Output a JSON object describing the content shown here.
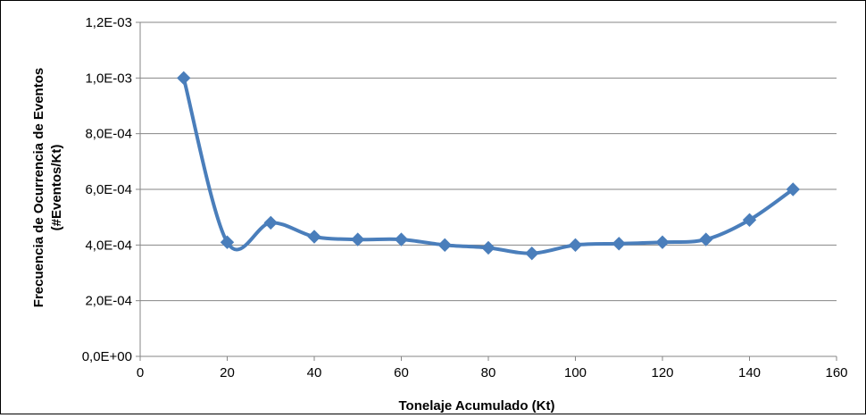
{
  "chart_data": {
    "type": "line",
    "title": "",
    "xlabel": "Tonelaje Acumulado (Kt)",
    "ylabel_line1": "Frecuencia de Ocurrencia de Eventos",
    "ylabel_line2": "(#Eventos/Kt)",
    "xlim": [
      0,
      160
    ],
    "ylim": [
      0,
      0.0012
    ],
    "x_ticks": [
      0,
      20,
      40,
      60,
      80,
      100,
      120,
      140,
      160
    ],
    "y_ticks": [
      0,
      0.0002,
      0.0004,
      0.0006,
      0.0008,
      0.001,
      0.0012
    ],
    "x_tick_labels": [
      "0",
      "20",
      "40",
      "60",
      "80",
      "100",
      "120",
      "140",
      "160"
    ],
    "y_tick_labels": [
      "0,0E+00",
      "2,0E-04",
      "4,0E-04",
      "6,0E-04",
      "8,0E-04",
      "1,0E-03",
      "1,2E-03"
    ],
    "grid": "horizontal",
    "legend": "none",
    "line_color": "#4a7ebb",
    "marker": "diamond",
    "smooth": true,
    "series": [
      {
        "x": [
          10,
          20,
          30,
          40,
          50,
          60,
          70,
          80,
          90,
          100,
          110,
          120,
          130,
          140,
          150
        ],
        "values": [
          0.001,
          0.00041,
          0.00048,
          0.00043,
          0.00042,
          0.00042,
          0.0004,
          0.00039,
          0.00037,
          0.0004,
          0.000405,
          0.00041,
          0.00042,
          0.00049,
          0.0006
        ]
      }
    ]
  }
}
